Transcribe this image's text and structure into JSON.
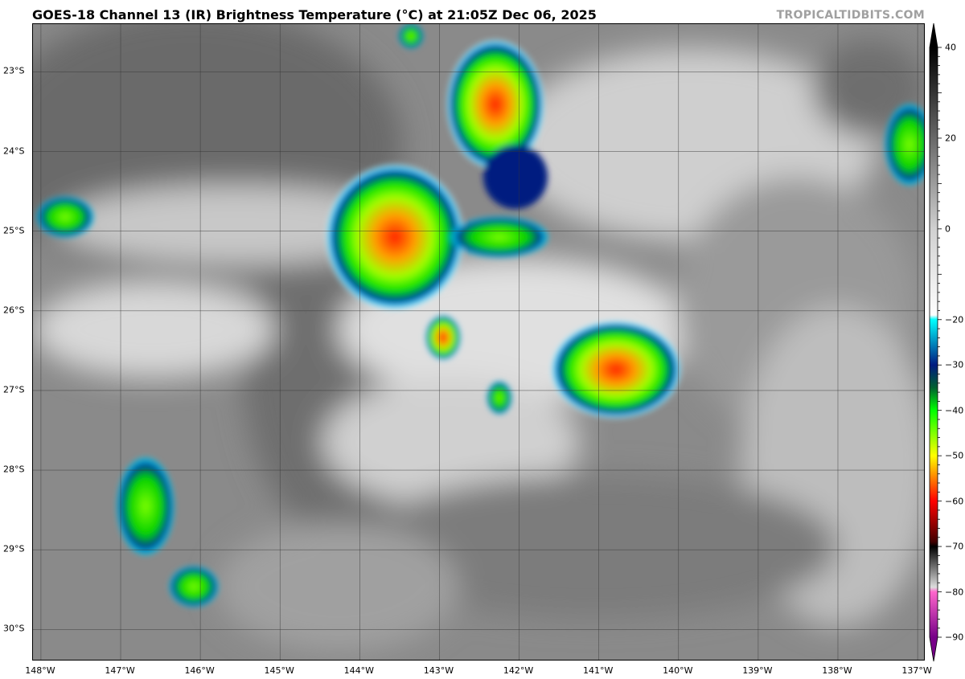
{
  "title": "GOES-18 Channel 13 (IR) Brightness Temperature (°C) at 21:05Z Dec 06, 2025",
  "watermark": "TROPICALTIDBITS.COM",
  "map": {
    "longitude_labels": [
      "148°W",
      "147°W",
      "146°W",
      "145°W",
      "144°W",
      "143°W",
      "142°W",
      "141°W",
      "140°W",
      "139°W",
      "138°W",
      "137°W"
    ],
    "latitude_labels": [
      "23°S",
      "24°S",
      "25°S",
      "26°S",
      "27°S",
      "28°S",
      "29°S",
      "30°S"
    ],
    "lon_range": [
      -148.1,
      -136.9
    ],
    "lat_range": [
      -22.4,
      -30.4
    ]
  },
  "colorbar": {
    "ticks": [
      "40",
      "20",
      "0",
      "−20",
      "−30",
      "−40",
      "−50",
      "−60",
      "−70",
      "−80",
      "−90"
    ],
    "tick_values": [
      40,
      20,
      0,
      -20,
      -30,
      -40,
      -50,
      -60,
      -70,
      -80,
      -90
    ],
    "range": [
      -90,
      40
    ],
    "extend": "both",
    "colors": {
      "40": "#000000",
      "0": "#d0d0d0",
      "-19": "#ffffff",
      "-20": "#00ffff",
      "-30": "#001a80",
      "-35": "#006030",
      "-40": "#00ff00",
      "-50": "#ffff00",
      "-60": "#ff0000",
      "-69": "#400000",
      "-70": "#000000",
      "-79": "#dddddd",
      "-80": "#ff66cc",
      "-90": "#770088"
    }
  }
}
